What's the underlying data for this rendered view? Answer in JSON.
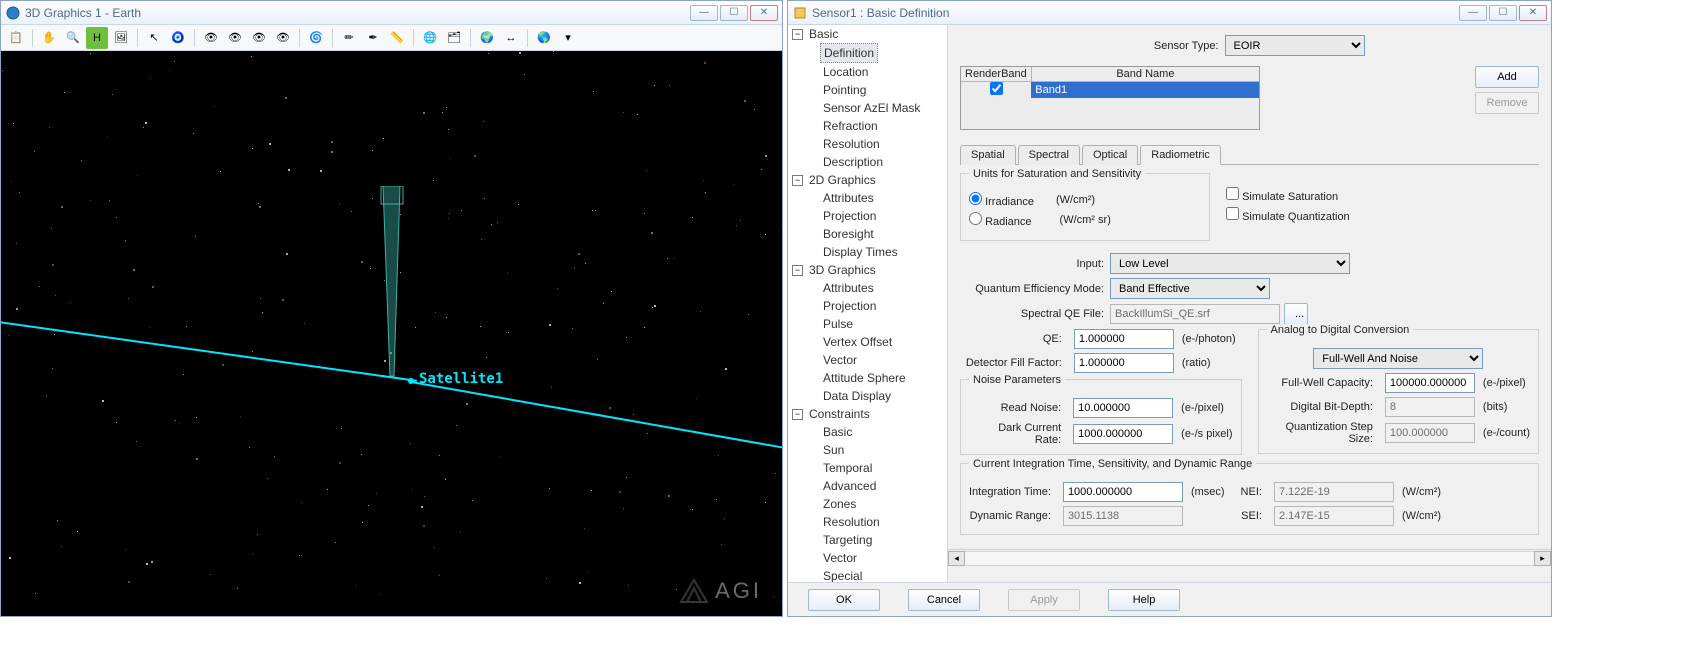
{
  "leftWindow": {
    "title": "3D Graphics 1 - Earth",
    "iconColor": "#1b6fae",
    "toolbar": [
      {
        "n": "copy-icon",
        "glyph": "📋"
      },
      {
        "sep": true
      },
      {
        "n": "hand-icon",
        "glyph": "✋"
      },
      {
        "n": "zoom-icon",
        "glyph": "🔍"
      },
      {
        "n": "hud-icon",
        "glyph": "H",
        "bg": "#6fbf3f"
      },
      {
        "n": "image-icon",
        "glyph": "🖼"
      },
      {
        "sep": true
      },
      {
        "n": "cursor-icon",
        "glyph": "↖"
      },
      {
        "n": "target-globe-icon",
        "glyph": "🧿"
      },
      {
        "sep": true
      },
      {
        "n": "view1-icon",
        "glyph": "👁"
      },
      {
        "n": "view2-icon",
        "glyph": "👁"
      },
      {
        "n": "view3-icon",
        "glyph": "👁"
      },
      {
        "n": "view4-icon",
        "glyph": "👁"
      },
      {
        "sep": true
      },
      {
        "n": "orbit-icon",
        "glyph": "🌀"
      },
      {
        "sep": true
      },
      {
        "n": "pencil-icon",
        "glyph": "✏"
      },
      {
        "n": "pencil-config-icon",
        "glyph": "✒"
      },
      {
        "n": "ruler-icon",
        "glyph": "📏"
      },
      {
        "sep": true
      },
      {
        "n": "globe-icon",
        "glyph": "🌐"
      },
      {
        "n": "layers-icon",
        "glyph": "🗂"
      },
      {
        "sep": true
      },
      {
        "n": "globe2-icon",
        "glyph": "🌍"
      },
      {
        "n": "scale-icon",
        "glyph": "↔"
      },
      {
        "sep": true
      },
      {
        "n": "earth-icon",
        "glyph": "🌎"
      },
      {
        "n": "dropdown-icon",
        "glyph": "▾"
      }
    ],
    "satelliteLabel": "Satellite1",
    "watermark": "AGI",
    "coneColor": "#2e8b82",
    "orbitColor": "#00e8ff"
  },
  "rightWindow": {
    "title": "Sensor1 : Basic Definition",
    "iconColor": "#d9a436",
    "tree": [
      {
        "label": "Basic",
        "children": [
          "Definition",
          "Location",
          "Pointing",
          "Sensor AzEl Mask",
          "Refraction",
          "Resolution",
          "Description"
        ],
        "selected": "Definition"
      },
      {
        "label": "2D Graphics",
        "children": [
          "Attributes",
          "Projection",
          "Boresight",
          "Display Times"
        ]
      },
      {
        "label": "3D Graphics",
        "children": [
          "Attributes",
          "Projection",
          "Pulse",
          "Vertex Offset",
          "Vector",
          "Attitude Sphere",
          "Data Display"
        ]
      },
      {
        "label": "Constraints",
        "children": [
          "Basic",
          "Sun",
          "Temporal",
          "Advanced",
          "Zones",
          "Resolution",
          "Targeting",
          "Vector",
          "Special"
        ]
      }
    ],
    "form": {
      "sensorTypeLabel": "Sensor Type:",
      "sensorType": "EOIR",
      "bandHeaders": [
        "RenderBand",
        "Band Name"
      ],
      "bandRow": {
        "checked": true,
        "name": "Band1"
      },
      "addLabel": "Add",
      "removeLabel": "Remove",
      "tabs": [
        "Spatial",
        "Spectral",
        "Optical",
        "Radiometric"
      ],
      "activeTab": "Radiometric",
      "unitsGroupTitle": "Units for Saturation and Sensitivity",
      "irradianceLabel": "Irradiance",
      "irradianceUnit": "(W/cm²)",
      "radianceLabel": "Radiance",
      "radianceUnit": "(W/cm² sr)",
      "simSatLabel": "Simulate Saturation",
      "simQuantLabel": "Simulate Quantization",
      "inputLabel": "Input:",
      "inputValue": "Low Level",
      "qemLabel": "Quantum Efficiency Mode:",
      "qemValue": "Band Effective",
      "qeFileLabel": "Spectral QE File:",
      "qeFileValue": "BackIllumSi_QE.srf",
      "browseLabel": "...",
      "qeLabel": "QE:",
      "qeValue": "1.000000",
      "qeUnit": "(e-/photon)",
      "dffLabel": "Detector Fill Factor:",
      "dffValue": "1.000000",
      "dffUnit": "(ratio)",
      "noiseTitle": "Noise Parameters",
      "readNoiseLabel": "Read Noise:",
      "readNoiseValue": "10.000000",
      "readNoiseUnit": "(e-/pixel)",
      "darkLabel": "Dark Current Rate:",
      "darkValue": "1000.000000",
      "darkUnit": "(e-/s pixel)",
      "adcTitle": "Analog to Digital Conversion",
      "adcMode": "Full-Well And Noise",
      "fwLabel": "Full-Well Capacity:",
      "fwValue": "100000.000000",
      "fwUnit": "(e-/pixel)",
      "bitLabel": "Digital Bit-Depth:",
      "bitValue": "8",
      "bitUnit": "(bits)",
      "qstepLabel": "Quantization Step Size:",
      "qstepValue": "100.000000",
      "qstepUnit": "(e-/count)",
      "citTitle": "Current Integration Time, Sensitivity, and Dynamic Range",
      "itLabel": "Integration Time:",
      "itValue": "1000.000000",
      "itUnit": "(msec)",
      "drLabel": "Dynamic Range:",
      "drValue": "3015.1138",
      "neiLabel": "NEI:",
      "neiValue": "7.122E-19",
      "neiUnit": "(W/cm²)",
      "seiLabel": "SEI:",
      "seiValue": "2.147E-15",
      "seiUnit": "(W/cm²)"
    },
    "buttons": {
      "ok": "OK",
      "cancel": "Cancel",
      "apply": "Apply",
      "help": "Help"
    }
  }
}
